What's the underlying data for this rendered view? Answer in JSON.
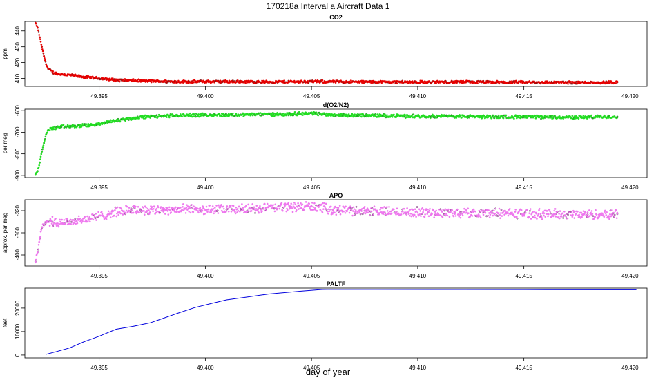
{
  "figure": {
    "title": "170218a   Interval a Aircraft Data 1",
    "xlabel": "day of year"
  },
  "chart_data": [
    {
      "type": "scatter",
      "title": "CO2",
      "ylabel": "ppm",
      "xlim": [
        49.3915,
        49.4208
      ],
      "ylim": [
        405,
        446
      ],
      "xticks": [
        49.395,
        49.4,
        49.405,
        49.41,
        49.415,
        49.42
      ],
      "xtick_labels": [
        "49.395",
        "49.400",
        "49.405",
        "49.410",
        "49.415",
        "49.420"
      ],
      "yticks": [
        410,
        420,
        430,
        440
      ],
      "ytick_labels": [
        "410",
        "420",
        "430",
        "440"
      ],
      "grid": false,
      "color": "#e60000",
      "x": [
        49.392,
        49.3921,
        49.3922,
        49.3923,
        49.3924,
        49.3925,
        49.3926,
        49.3928,
        49.393,
        49.3933,
        49.3937,
        49.3942,
        49.395,
        49.3958,
        49.397,
        49.3985,
        49.4,
        49.4015,
        49.403,
        49.4045,
        49.406,
        49.4075,
        49.409,
        49.4105,
        49.412,
        49.4135,
        49.415,
        49.4165,
        49.418,
        49.4194
      ],
      "values": [
        445,
        442,
        436,
        430,
        424,
        419,
        416,
        414,
        413,
        412.5,
        412,
        411,
        410,
        409,
        408.5,
        408,
        408,
        408,
        407.8,
        408,
        408,
        407.8,
        407.8,
        407.7,
        407.8,
        407.6,
        407.6,
        407.5,
        407.5,
        407.6
      ]
    },
    {
      "type": "scatter",
      "title": "d(O2/N2)",
      "ylabel": "per meg",
      "xlim": [
        49.3915,
        49.4208
      ],
      "ylim": [
        -910,
        -593
      ],
      "xticks": [
        49.395,
        49.4,
        49.405,
        49.41,
        49.415,
        49.42
      ],
      "xtick_labels": [
        "49.395",
        "49.400",
        "49.405",
        "49.410",
        "49.415",
        "49.420"
      ],
      "yticks": [
        -900,
        -800,
        -700,
        -600
      ],
      "ytick_labels": [
        "-900",
        "-800",
        "-700",
        "-600"
      ],
      "grid": false,
      "color": "#22dd22",
      "x": [
        49.392,
        49.3921,
        49.3922,
        49.3923,
        49.3924,
        49.3925,
        49.3926,
        49.3928,
        49.3932,
        49.3938,
        49.3945,
        49.395,
        49.3955,
        49.3962,
        49.397,
        49.398,
        49.399,
        49.4,
        49.401,
        49.402,
        49.403,
        49.404,
        49.405,
        49.406,
        49.407,
        49.408,
        49.409,
        49.41,
        49.411,
        49.412,
        49.413,
        49.414,
        49.415,
        49.416,
        49.417,
        49.418,
        49.4194
      ],
      "values": [
        -895,
        -880,
        -840,
        -790,
        -750,
        -710,
        -690,
        -682,
        -675,
        -672,
        -668,
        -663,
        -650,
        -640,
        -630,
        -625,
        -622,
        -620,
        -620,
        -618,
        -617,
        -616,
        -612,
        -620,
        -622,
        -623,
        -625,
        -625,
        -626,
        -627,
        -628,
        -628,
        -629,
        -630,
        -631,
        -630,
        -628
      ]
    },
    {
      "type": "scatter",
      "title": "APO",
      "ylabel": "approx. per meg",
      "xlim": [
        49.3915,
        49.4208
      ],
      "ylim": [
        -420,
        -300
      ],
      "xticks": [
        49.395,
        49.4,
        49.405,
        49.41,
        49.415,
        49.42
      ],
      "xtick_labels": [
        "49.395",
        "49.400",
        "49.405",
        "49.410",
        "49.415",
        "49.420"
      ],
      "yticks": [
        -400,
        -360,
        -320
      ],
      "ytick_labels": [
        "-400",
        "-360",
        "-320"
      ],
      "grid": false,
      "color": "#ee77ee",
      "x": [
        49.392,
        49.3921,
        49.3922,
        49.3923,
        49.3925,
        49.3928,
        49.3935,
        49.3945,
        49.3955,
        49.3965,
        49.398,
        49.3995,
        49.401,
        49.4025,
        49.404,
        49.405,
        49.406,
        49.4075,
        49.409,
        49.4105,
        49.412,
        49.4135,
        49.415,
        49.4165,
        49.418,
        49.4194
      ],
      "values": [
        -412,
        -395,
        -370,
        -350,
        -340,
        -340,
        -340,
        -335,
        -325,
        -318,
        -318,
        -317,
        -318,
        -316,
        -313,
        -312,
        -318,
        -320,
        -322,
        -323,
        -324,
        -324,
        -325,
        -326,
        -327,
        -326
      ]
    },
    {
      "type": "line",
      "title": "PALTF",
      "ylabel": "feet",
      "xlim": [
        49.3915,
        49.4208
      ],
      "ylim": [
        -1200,
        28500
      ],
      "xticks": [
        49.395,
        49.4,
        49.405,
        49.41,
        49.415,
        49.42
      ],
      "xtick_labels": [
        "49.395",
        "49.400",
        "49.405",
        "49.410",
        "49.415",
        "49.420"
      ],
      "yticks": [
        0,
        10000,
        20000
      ],
      "ytick_labels": [
        "0",
        "10000",
        "20000"
      ],
      "grid": false,
      "color": "#0000dd",
      "x": [
        49.3925,
        49.393,
        49.3936,
        49.3943,
        49.395,
        49.3958,
        49.3966,
        49.3974,
        49.398,
        49.3987,
        49.3995,
        49.4003,
        49.401,
        49.4018,
        49.403,
        49.4045,
        49.4055,
        49.406,
        49.4062,
        49.408,
        49.412,
        49.416,
        49.4203
      ],
      "values": [
        300,
        1500,
        3000,
        5700,
        8000,
        11000,
        12200,
        13700,
        15600,
        17800,
        20200,
        22000,
        23500,
        24500,
        26000,
        27200,
        27900,
        28000,
        27950,
        27950,
        27900,
        27850,
        27800
      ]
    }
  ]
}
